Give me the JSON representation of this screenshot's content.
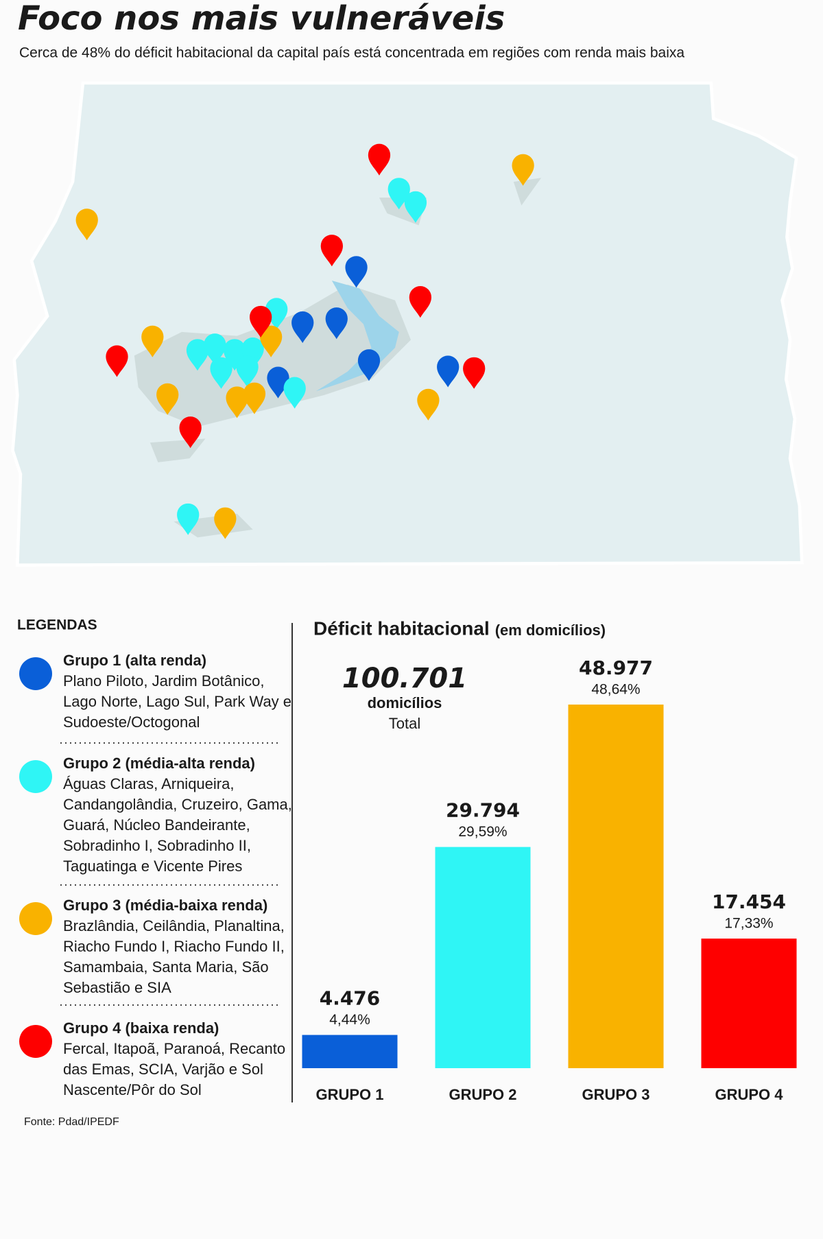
{
  "title": "Foco nos mais vulneráveis",
  "subtitle": "Cerca de 48% do déficit habitacional da capital país está concentrada em regiões com renda mais baixa",
  "legend": {
    "heading": "LEGENDAS",
    "groups": [
      {
        "name": "Grupo 1 (alta renda)",
        "color": "#0a5fd8",
        "lines": [
          "Plano Piloto, Jardim Botânico,",
          "Lago Norte, Lago Sul, Park Way e",
          "Sudoeste/Octogonal"
        ]
      },
      {
        "name": "Grupo 2 (média-alta renda)",
        "color": "#2ff5f5",
        "lines": [
          "Águas Claras, Arniqueira,",
          "Candangolândia, Cruzeiro, Gama,",
          "Guará, Núcleo Bandeirante,",
          "Sobradinho I, Sobradinho II,",
          "Taguatinga e Vicente Pires"
        ]
      },
      {
        "name": "Grupo 3 (média-baixa renda)",
        "color": "#f9b200",
        "lines": [
          "Brazlândia, Ceilândia, Planaltina,",
          "Riacho Fundo I, Riacho Fundo II,",
          "Samambaia, Santa Maria, São",
          "Sebastião e SIA"
        ]
      },
      {
        "name": "Grupo 4 (baixa renda)",
        "color": "#fe0000",
        "lines": [
          "Fercal, Itapoã, Paranoá, Recanto",
          "das Emas, SCIA, Varjão e Sol",
          "Nascente/Pôr do Sol"
        ]
      }
    ]
  },
  "chart_data": {
    "type": "bar",
    "title": "Déficit habitacional",
    "subtitle": "(em domicílios)",
    "total": {
      "value": 100701,
      "label": "100.701"
    },
    "total_unit": "domicílios",
    "total_caption": "Total",
    "categories": [
      "GRUPO 1",
      "GRUPO 2",
      "GRUPO 3",
      "GRUPO 4"
    ],
    "values": [
      4476,
      29794,
      48977,
      17454
    ],
    "value_labels": [
      "4.476",
      "29.794",
      "48.977",
      "17.454"
    ],
    "shares": [
      4.44,
      29.59,
      48.64,
      17.33
    ],
    "share_labels": [
      "4,44%",
      "29,59%",
      "48,64%",
      "17,33%"
    ],
    "colors": [
      "#0a5fd8",
      "#2ff5f5",
      "#f9b200",
      "#fe0000"
    ]
  },
  "source": "Fonte: Pdad/IPEDF"
}
